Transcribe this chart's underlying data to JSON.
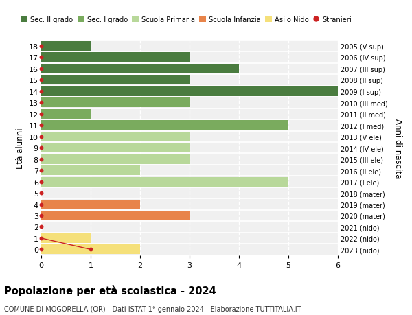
{
  "ages": [
    18,
    17,
    16,
    15,
    14,
    13,
    12,
    11,
    10,
    9,
    8,
    7,
    6,
    5,
    4,
    3,
    2,
    1,
    0
  ],
  "right_labels": [
    "2005 (V sup)",
    "2006 (IV sup)",
    "2007 (III sup)",
    "2008 (II sup)",
    "2009 (I sup)",
    "2010 (III med)",
    "2011 (II med)",
    "2012 (I med)",
    "2013 (V ele)",
    "2014 (IV ele)",
    "2015 (III ele)",
    "2016 (II ele)",
    "2017 (I ele)",
    "2018 (mater)",
    "2019 (mater)",
    "2020 (mater)",
    "2021 (nido)",
    "2022 (nido)",
    "2023 (nido)"
  ],
  "bar_values": [
    1,
    3,
    4,
    3,
    6,
    3,
    1,
    5,
    3,
    3,
    3,
    2,
    5,
    0,
    2,
    3,
    0,
    1,
    2
  ],
  "bar_colors": [
    "#4a7c3f",
    "#4a7c3f",
    "#4a7c3f",
    "#4a7c3f",
    "#4a7c3f",
    "#7aab5e",
    "#7aab5e",
    "#7aab5e",
    "#b8d89a",
    "#b8d89a",
    "#b8d89a",
    "#b8d89a",
    "#b8d89a",
    "#e8844a",
    "#e8844a",
    "#e8844a",
    "#f5e07a",
    "#f5e07a",
    "#f5e07a"
  ],
  "stranieri_line_x": [
    0,
    1
  ],
  "stranieri_line_y": [
    1,
    0
  ],
  "dot_color": "#cc2222",
  "dot_size": 18,
  "color_sec2": "#4a7c3f",
  "color_sec1": "#7aab5e",
  "color_prim": "#b8d89a",
  "color_inf": "#e8844a",
  "color_nido": "#f5e07a",
  "color_stranieri": "#cc2222",
  "legend_labels": [
    "Sec. II grado",
    "Sec. I grado",
    "Scuola Primaria",
    "Scuola Infanzia",
    "Asilo Nido",
    "Stranieri"
  ],
  "title": "Popolazione per età scolastica - 2024",
  "subtitle": "COMUNE DI MOGORELLA (OR) - Dati ISTAT 1° gennaio 2024 - Elaborazione TUTTITALIA.IT",
  "ylabel_left": "Età alunni",
  "ylabel_right": "Anni di nascita",
  "xlim": [
    0,
    6
  ],
  "ylim": [
    -0.5,
    18.5
  ],
  "bg_color": "#ffffff",
  "plot_bg_color": "#f0f0f0",
  "grid_color": "#ffffff",
  "bar_height": 0.85
}
